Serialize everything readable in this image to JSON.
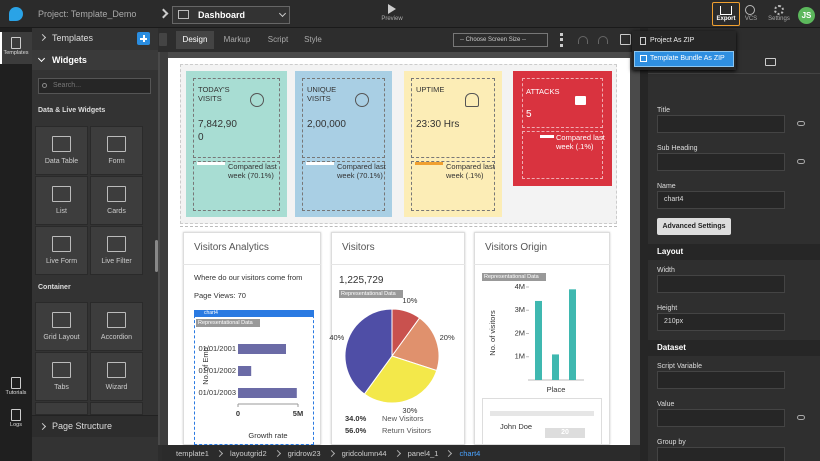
{
  "topbar": {
    "project": "Project: Template_Demo",
    "page": "Dashboard",
    "preview": "Preview",
    "export": "Export",
    "vcs": "VCS",
    "settings": "Settings",
    "user": "JS"
  },
  "rail": [
    "Templates",
    "Tutorials",
    "Logs"
  ],
  "left_panel": {
    "templates": "Templates",
    "widgets": "Widgets",
    "search_placeholder": "Search...",
    "groups": [
      {
        "title": "Data & Live Widgets",
        "items": [
          "Data Table",
          "Form",
          "List",
          "Cards",
          "Live Form",
          "Live Filter"
        ]
      },
      {
        "title": "Container",
        "items": [
          "Grid Layout",
          "Accordion",
          "Tabs",
          "Wizard"
        ]
      }
    ],
    "page_structure": "Page Structure"
  },
  "editor": {
    "tabs": [
      "Design",
      "Markup",
      "Script",
      "Style"
    ],
    "screen_size": "-- Choose Screen Size --"
  },
  "export_menu": [
    "Project As ZIP",
    "Template Bundle As ZIP"
  ],
  "properties": {
    "fields": [
      {
        "label": "Title"
      },
      {
        "label": "Sub Heading"
      },
      {
        "label": "Name",
        "value": "chart4"
      }
    ],
    "advanced": "Advanced Settings",
    "sections": [
      {
        "title": "Layout",
        "fields": [
          {
            "label": "Width"
          },
          {
            "label": "Height",
            "value": "210px"
          }
        ]
      },
      {
        "title": "Dataset",
        "fields": [
          {
            "label": "Script Variable"
          },
          {
            "label": "Value"
          },
          {
            "label": "Group by"
          }
        ]
      }
    ]
  },
  "cards": [
    {
      "title": "TODAY'S VISITS",
      "value": "7,842,900",
      "compare": "Compared last week (70.1%)"
    },
    {
      "title": "UNIQUE VISITS",
      "value": "2,00,000",
      "compare": "Compared last week (70.1%)"
    },
    {
      "title": "UPTIME",
      "value": "23:30 Hrs",
      "compare": "Compared last week (.1%)"
    },
    {
      "title": "ATTACKS",
      "value": "5",
      "compare": "Compared last week (.1%)"
    }
  ],
  "panels": [
    {
      "title": "Visitors Analytics",
      "subtitle": "Where do our visitors come from",
      "stat": "Page Views: 70",
      "widget": "chart4",
      "chart": {
        "type": "bar",
        "orientation": "horizontal",
        "badge": "Representational Data",
        "categories": [
          "01/01/2001",
          "01/01/2002",
          "01/01/2003"
        ],
        "values": [
          4000000,
          1100000,
          4900000
        ],
        "xlim": [
          0,
          5000000
        ],
        "xticks": [
          0,
          {
            "value": 5000000,
            "label": "5M"
          }
        ],
        "xlabel": "Growth rate",
        "ylabel": "No. of Emp",
        "color": "#6b6ba6"
      }
    },
    {
      "title": "Visitors",
      "stat": "1,225,729",
      "chart": {
        "type": "pie",
        "badge": "Representational Data",
        "values": [
          10,
          20,
          30,
          40
        ],
        "value_labels": [
          "10%",
          "20%",
          "30%",
          "40%"
        ],
        "colors": [
          "#c9514e",
          "#e0916d",
          "#f3e84a",
          "#4f4ea6"
        ],
        "legend": [
          {
            "value": "34.0%",
            "name": "New Visitors"
          },
          {
            "value": "56.0%",
            "name": "Return Visitors"
          }
        ]
      }
    },
    {
      "title": "Visitors Origin",
      "chart": {
        "type": "bar",
        "orientation": "vertical",
        "badge": "Representational Data",
        "categories": [
          null,
          null,
          null
        ],
        "values": [
          3400000,
          1100000,
          3900000
        ],
        "ylim": [
          0,
          4000000
        ],
        "yticks": [
          {
            "value": 1000000,
            "label": "1M"
          },
          {
            "value": 2000000,
            "label": "2M"
          },
          {
            "value": 3000000,
            "label": "3M"
          },
          {
            "value": 4000000,
            "label": "4M"
          }
        ],
        "ylabel": "No. of visitors",
        "xlabel": "Place",
        "color": "#3fb8b0"
      },
      "table": {
        "name": "John Doe",
        "value": 20
      }
    }
  ],
  "breadcrumb": [
    "template1",
    "layoutgrid2",
    "gridrow23",
    "gridcolumn44",
    "panel4_1",
    "chart4"
  ]
}
